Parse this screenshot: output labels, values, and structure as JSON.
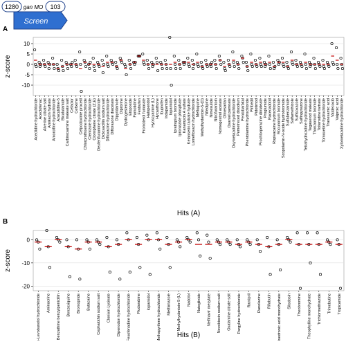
{
  "header": {
    "left_count": "1280",
    "label": "gan MO",
    "right_count": "103",
    "step": "Screen"
  },
  "chart_data": [
    {
      "type": "dot",
      "panel": "A",
      "ylabel": "z-score",
      "xlabel": "Hits (A)",
      "point_color": "#000000",
      "mean_color": "#c00000",
      "grid": true,
      "ylim": [
        -15,
        13
      ],
      "yticks": [
        -10,
        -5,
        0,
        5,
        10
      ],
      "categories": [
        "Aceclidine hydrochloride",
        "Aceclofenac",
        "Alverine citrate salt",
        "Amikacin hydrate",
        "Amorolfine hydrochloride",
        "Azacytidine-5",
        "Bicalutamide",
        "Carbinoxamine maleate salt",
        "Cefaclor",
        "Cefixime",
        "Cefpodoxime proxetil",
        "Chlorprothixene hydrochloride",
        "Clemizole hydrochloride",
        "Clomiphene citrate (Z,E)",
        "Dexfenfluramine hydrochloride",
        "Dicloxacillin sodium salt",
        "Difloxacine hydrochloride",
        "Diflorasone diacetate",
        "Dipyridamole",
        "Diprorine",
        "Dydrogesterone",
        "Etoposide",
        "Famotidine",
        "Fenbufen",
        "Fromoterol fumarate",
        "Haloperidol",
        "Hyoscyamine (L)",
        "Hycanthone",
        "Ibuprofen",
        "Indapamide",
        "Iopamidol",
        "Ipratropium bromide",
        "Iproniazide phosphate",
        "Kanamycin A sulfate",
        "Ketanserin tartrate hydrate",
        "Lomefloxacin hydrochloride",
        "Mefloquine",
        "Methylhydantoin-5-(D)",
        "Nifedipine",
        "Nimesulide",
        "Nitrofurantoin",
        "Nomegestrol acetate",
        "Olmesartan",
        "Oxantel pamoate",
        "Oxymetazoline hydrochloride",
        "Pemetrexed disodium",
        "Pentobarbital",
        "Phentolamine hydrochloride",
        "Piribedil",
        "Pidotimod",
        "Prochlorperazine dimaleate",
        "Proglumide",
        "Racecadotril",
        "Ropivacaine hydrochloride",
        "Rocuronium bromide",
        "Scopolamin-N-oxide hydrobromide",
        "Sulfabenzamide",
        "Sulfamethizole",
        "Sulfisoxazole",
        "Sulfinpyrazone",
        "Tetrahydrozoline hydrochloride",
        "Tegaserod maleate",
        "Thonzonium bromide",
        "Tolterodine tartrate",
        "Tomoxetine hydrochloride",
        "Tranexamic acid",
        "Valdecoxib",
        "Valproic acid",
        "Xylometazoline hydrochloride"
      ],
      "values": [
        [
          7,
          0,
          -1
        ],
        [
          1,
          -1,
          0
        ],
        [
          2,
          0,
          -1
        ],
        [
          1,
          -2,
          0
        ],
        [
          3,
          0,
          -2
        ],
        [
          0,
          -2,
          -3
        ],
        [
          2,
          -1,
          -3
        ],
        [
          1,
          0,
          -2
        ],
        [
          0,
          -1,
          1
        ],
        [
          2,
          0,
          -1
        ],
        [
          6,
          0,
          -13
        ],
        [
          2,
          1,
          -1
        ],
        [
          0,
          -2,
          1
        ],
        [
          3,
          -1,
          -3
        ],
        [
          1,
          0,
          -1
        ],
        [
          2,
          -4,
          0
        ],
        [
          4,
          0,
          -1
        ],
        [
          2,
          1,
          0
        ],
        [
          1,
          -1,
          -2
        ],
        [
          3,
          2,
          1
        ],
        [
          0,
          -1,
          -5
        ],
        [
          2,
          0,
          -2
        ],
        [
          1,
          0,
          1
        ],
        [
          4,
          4,
          4
        ],
        [
          5,
          1,
          0
        ],
        [
          2,
          0,
          -2
        ],
        [
          1,
          -1,
          0
        ],
        [
          3,
          1,
          -3
        ],
        [
          1,
          0,
          -2
        ],
        [
          2,
          0,
          -2
        ],
        [
          13,
          -2,
          -10
        ],
        [
          4,
          0,
          -2
        ],
        [
          2,
          0,
          -2
        ],
        [
          1,
          0,
          1
        ],
        [
          3,
          0,
          -1
        ],
        [
          2,
          -2,
          0
        ],
        [
          5,
          0,
          -1
        ],
        [
          1,
          -1,
          -2
        ],
        [
          2,
          0,
          -1
        ],
        [
          0,
          -1,
          1
        ],
        [
          2,
          0,
          -2
        ],
        [
          4,
          2,
          0
        ],
        [
          1,
          -2,
          -3
        ],
        [
          2,
          0,
          -1
        ],
        [
          6,
          1,
          -1
        ],
        [
          1,
          0,
          -2
        ],
        [
          4,
          3,
          1
        ],
        [
          1,
          -1,
          -3
        ],
        [
          5,
          0,
          -1
        ],
        [
          2,
          0,
          -1
        ],
        [
          3,
          0,
          -1
        ],
        [
          1,
          -1,
          0
        ],
        [
          4,
          0,
          -2
        ],
        [
          1,
          -2,
          -1
        ],
        [
          2,
          0,
          1
        ],
        [
          3,
          0,
          -1
        ],
        [
          1,
          -1,
          -2
        ],
        [
          6,
          1,
          0
        ],
        [
          2,
          0,
          -1
        ],
        [
          1,
          0,
          -1
        ],
        [
          5,
          0,
          -2
        ],
        [
          1,
          -1,
          0
        ],
        [
          3,
          0,
          -2
        ],
        [
          1,
          0,
          -1
        ],
        [
          2,
          -1,
          -2
        ],
        [
          1,
          0,
          -1
        ],
        [
          10,
          1,
          0
        ],
        [
          8,
          0,
          -2
        ],
        [
          3,
          0,
          -2
        ]
      ],
      "means": [
        2,
        0,
        0,
        0,
        0,
        -2,
        -1,
        0,
        0,
        0,
        -2,
        1,
        0,
        0,
        0,
        -1,
        1,
        1,
        -1,
        2,
        -2,
        0,
        1,
        4,
        2,
        0,
        0,
        0,
        0,
        0,
        0,
        1,
        0,
        1,
        1,
        0,
        1,
        -1,
        0,
        0,
        0,
        2,
        -1,
        0,
        2,
        0,
        3,
        -1,
        1,
        0,
        1,
        0,
        1,
        -1,
        1,
        1,
        -1,
        2,
        0,
        0,
        1,
        0,
        0,
        0,
        0,
        0,
        4,
        2,
        0
      ]
    },
    {
      "type": "dot",
      "panel": "B",
      "ylabel": "z-score",
      "xlabel": "Hits (B)",
      "point_color": "#000000",
      "mean_color": "#c00000",
      "grid": true,
      "ylim": [
        -22,
        4
      ],
      "yticks": [
        -20,
        -10,
        0
      ],
      "categories": [
        "(+)-Levobunolol hydrochloride",
        "Aminacrine",
        "Benzathine benzylpenicillin",
        "Benzoxiquine",
        "Bromopride",
        "Butacaine",
        "Cephalothin sodium salt",
        "Clonixin Lysinate",
        "Dipenodon hydrochloride",
        "Fexofenadine hydrochloride",
        "Fludarabine",
        "Iopamidol",
        "Methapyrilene hydrochloride",
        "Methimazole",
        "Methylhydantoin-5-(L)",
        "Nadolol",
        "Nateglinide",
        "Nelfinavir mesylate",
        "Novobiocin sodium salt",
        "Oxalamine citrate salt",
        "Pargyline hydrochloride",
        "Ramipril",
        "Ranolazine",
        "Rifabutin",
        "Risedronic acid monohydrate",
        "Silodosin",
        "Theobromine",
        "Theophylline monohydrate",
        "Trichlormethiazide",
        "Trimebutine",
        "Tropicamide"
      ],
      "values": [
        [
          0,
          -1,
          -4
        ],
        [
          4,
          -3,
          -12
        ],
        [
          1,
          0,
          -1
        ],
        [
          0,
          -3,
          -16
        ],
        [
          0,
          -4,
          -17
        ],
        [
          0,
          -1,
          -4
        ],
        [
          0,
          -1,
          -2
        ],
        [
          1,
          -3,
          -14
        ],
        [
          0,
          -2,
          -17
        ],
        [
          3,
          0,
          -14
        ],
        [
          1,
          -2,
          -12
        ],
        [
          2,
          0,
          -15
        ],
        [
          3,
          0,
          -4
        ],
        [
          1,
          -2,
          -12
        ],
        [
          0,
          -1,
          -3
        ],
        [
          1,
          0,
          -1
        ],
        [
          3,
          0,
          -7
        ],
        [
          2,
          -1,
          -8
        ],
        [
          0,
          -1,
          -2
        ],
        [
          0,
          -1,
          -2
        ],
        [
          0,
          -2,
          -3
        ],
        [
          0,
          -1,
          -2
        ],
        [
          0,
          -2,
          -5
        ],
        [
          1,
          -3,
          -15
        ],
        [
          0,
          -2,
          -13
        ],
        [
          1,
          0,
          -1
        ],
        [
          3,
          -2,
          -21
        ],
        [
          3,
          -2,
          -10
        ],
        [
          3,
          -2,
          -15
        ],
        [
          0,
          -1,
          -2
        ],
        [
          0,
          -2,
          -21
        ]
      ],
      "means": [
        -1,
        -3,
        0,
        -3,
        -4,
        -1,
        -1,
        -3,
        -2,
        0,
        -2,
        0,
        0,
        -2,
        -1,
        0,
        -2,
        -2,
        -1,
        -1,
        -2,
        -1,
        -2,
        -3,
        -2,
        0,
        -2,
        -2,
        -2,
        -1,
        -2
      ]
    }
  ]
}
